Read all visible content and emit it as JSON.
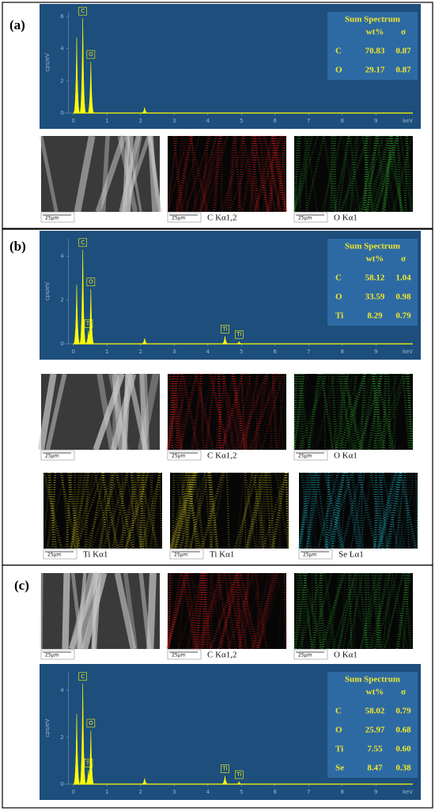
{
  "panels": [
    {
      "label": "(a)",
      "spectrum": {
        "ylabel": "cps/eV",
        "xunit": "keV",
        "xlim": [
          -0.3,
          10.1
        ],
        "xticks": [
          0,
          1,
          2,
          3,
          4,
          5,
          6,
          7,
          8,
          9
        ],
        "ylim": [
          0,
          6.3
        ],
        "yticks": [
          0,
          2,
          4,
          6
        ],
        "color": "#ffff00",
        "peaks": [
          {
            "x": 0.1,
            "y": 4.7
          },
          {
            "label": "C",
            "x": 0.28,
            "y": 5.9
          },
          {
            "label": "O",
            "x": 0.52,
            "y": 3.2
          },
          {
            "x": 2.12,
            "y": 0.35
          }
        ]
      },
      "table": {
        "title": "Sum Spectrum",
        "columns": [
          "wt%",
          "σ"
        ],
        "rows": [
          [
            "C",
            "70.83",
            "0.87"
          ],
          [
            "O",
            "29.17",
            "0.87"
          ]
        ]
      },
      "images": [
        {
          "kind": "sem",
          "scale": "25µm",
          "color": "#c8c8c8"
        },
        {
          "caption": "C Kα1,2",
          "scale": "25µm",
          "color": "#e02020"
        },
        {
          "caption": "O Kα1",
          "scale": "25µm",
          "color": "#30b030"
        }
      ]
    },
    {
      "label": "(b)",
      "spectrum": {
        "ylabel": "cps/eV",
        "xunit": "keV",
        "xlim": [
          -0.3,
          10.1
        ],
        "xticks": [
          0,
          1,
          2,
          3,
          4,
          5,
          6,
          7,
          8,
          9
        ],
        "ylim": [
          0,
          4.8
        ],
        "yticks": [
          0,
          2,
          4
        ],
        "color": "#ffff00",
        "peaks": [
          {
            "x": 0.1,
            "y": 2.7
          },
          {
            "label": "C",
            "x": 0.28,
            "y": 4.3
          },
          {
            "label": "Ti",
            "x": 0.45,
            "y": 0.6
          },
          {
            "label": "O",
            "x": 0.52,
            "y": 2.5
          },
          {
            "x": 2.12,
            "y": 0.25
          },
          {
            "label": "Ti",
            "x": 4.51,
            "y": 0.35
          },
          {
            "label": "Ti",
            "x": 4.93,
            "y": 0.1
          }
        ]
      },
      "table": {
        "title": "Sum Spectrum",
        "columns": [
          "wt%",
          "σ"
        ],
        "rows": [
          [
            "C",
            "58.12",
            "1.04"
          ],
          [
            "O",
            "33.59",
            "0.98"
          ],
          [
            "Ti",
            "8.29",
            "0.79"
          ]
        ]
      },
      "images": [
        {
          "kind": "sem",
          "scale": "25µm",
          "color": "#c8c8c8"
        },
        {
          "caption": "C Kα1,2",
          "scale": "25µm",
          "color": "#e02020"
        },
        {
          "caption": "O Kα1",
          "scale": "25µm",
          "color": "#30b030"
        },
        {
          "caption": "Ti Kα1",
          "scale": "25µm",
          "color": "#c8c020"
        },
        {
          "caption": "Ti Kα1",
          "scale": "25µm",
          "color": "#c8c020"
        },
        {
          "caption": "Se Lα1",
          "scale": "25µm",
          "color": "#20c0d0"
        }
      ]
    },
    {
      "label": "(c)",
      "spectrum": {
        "ylabel": "cps/eV",
        "xunit": "keV",
        "xlim": [
          -0.3,
          10.1
        ],
        "xticks": [
          0,
          1,
          2,
          3,
          4,
          5,
          6,
          7,
          8,
          9
        ],
        "ylim": [
          0,
          4.8
        ],
        "yticks": [
          0,
          2,
          4
        ],
        "color": "#ffff00",
        "peaks": [
          {
            "x": 0.1,
            "y": 3.0
          },
          {
            "label": "C",
            "x": 0.28,
            "y": 4.3
          },
          {
            "label": "Ti",
            "x": 0.45,
            "y": 0.6
          },
          {
            "label": "O",
            "x": 0.52,
            "y": 2.3
          },
          {
            "x": 2.12,
            "y": 0.25
          },
          {
            "label": "Ti",
            "x": 4.51,
            "y": 0.35
          },
          {
            "label": "Ti",
            "x": 4.93,
            "y": 0.1
          }
        ]
      },
      "table": {
        "title": "Sum Spectrum",
        "columns": [
          "wt%",
          "σ"
        ],
        "rows": [
          [
            "C",
            "58.02",
            "0.79"
          ],
          [
            "O",
            "25.97",
            "0.68"
          ],
          [
            "Ti",
            "7.55",
            "0.60"
          ],
          [
            "Se",
            "8.47",
            "0.38"
          ]
        ]
      },
      "images": [
        {
          "kind": "sem",
          "scale": "25µm",
          "color": "#c8c8c8"
        },
        {
          "caption": "C Kα1,2",
          "scale": "25µm",
          "color": "#e02020"
        },
        {
          "caption": "O Kα1",
          "scale": "25µm",
          "color": "#30b030"
        }
      ]
    }
  ]
}
